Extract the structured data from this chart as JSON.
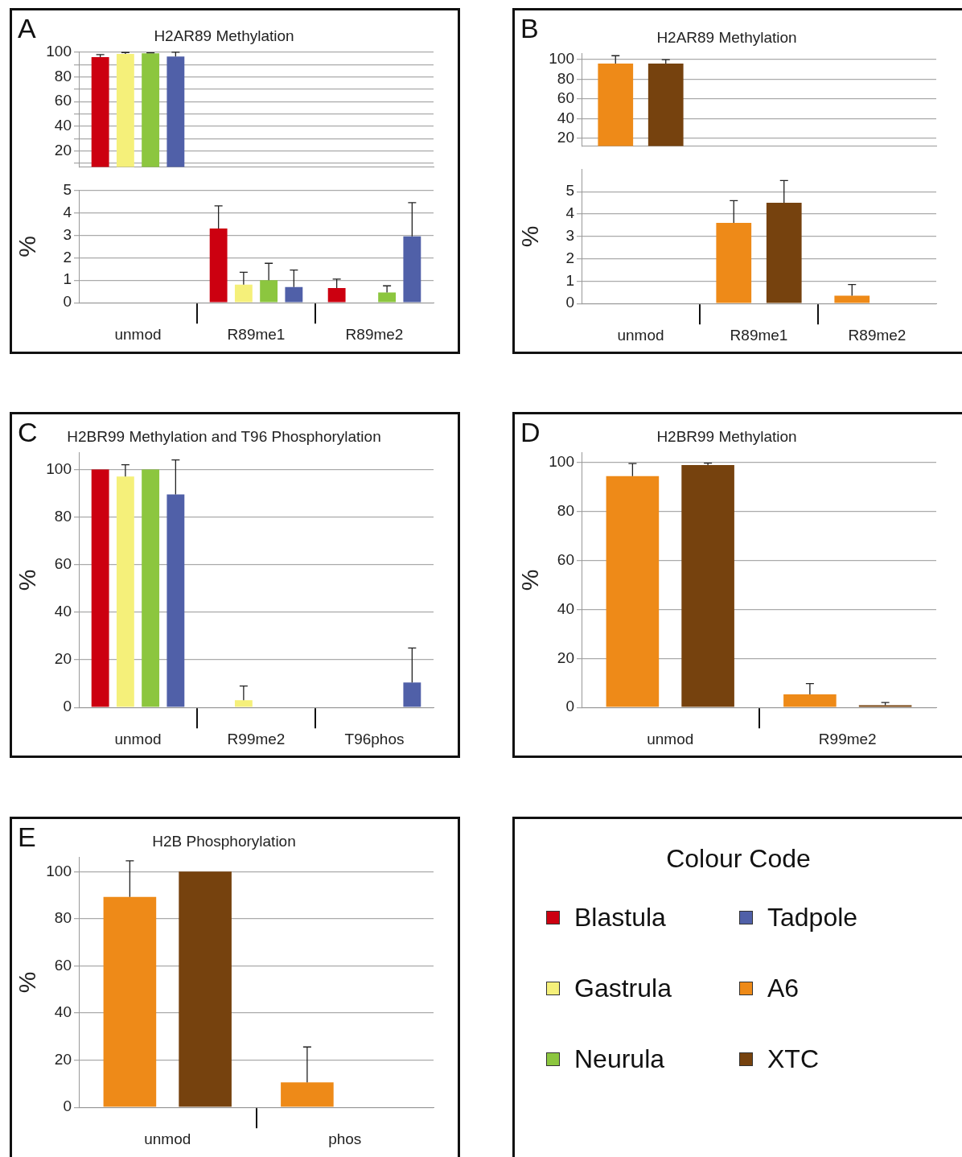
{
  "chart_data": [
    {
      "type": "bar",
      "title": "H2AR89 Methylation",
      "annotations": [
        "A"
      ],
      "categories": [
        null,
        null,
        null
      ],
      "tick_labels": "y",
      "grid": "y",
      "legend": false,
      "ylim": [
        7,
        100
      ],
      "yticks": [
        {
          "value": 10,
          "label": null
        },
        20,
        {
          "value": 30,
          "label": null
        },
        40,
        {
          "value": 50,
          "label": null
        },
        60,
        {
          "value": 70,
          "label": null
        },
        80,
        {
          "value": 90,
          "label": null
        },
        100
      ],
      "series": [
        {
          "color": "#cc0010",
          "values": [
            96,
            null,
            null
          ],
          "errors": [
            [
              96,
              98
            ],
            null,
            null
          ]
        },
        {
          "color": "#f5f07a",
          "values": [
            98.5,
            null,
            null
          ],
          "errors": [
            [
              98.5,
              99.7
            ],
            null,
            null
          ]
        },
        {
          "color": "#8cc63f",
          "values": [
            99,
            null,
            null
          ],
          "errors": [
            [
              99,
              99.5
            ],
            null,
            null
          ]
        },
        {
          "color": "#5060a8",
          "values": [
            96.5,
            null,
            null
          ],
          "errors": [
            [
              96.5,
              100
            ],
            null,
            null
          ]
        }
      ]
    },
    {
      "type": "bar",
      "ylabel": "%",
      "categories": [
        "unmod",
        "R89me1",
        "R89me2"
      ],
      "grid": "y",
      "legend": false,
      "ylim": [
        0,
        5
      ],
      "yticks": [
        0,
        1,
        2,
        3,
        4,
        5
      ],
      "series": [
        {
          "color": "#cc0010",
          "values": [
            null,
            3.3,
            0.65
          ],
          "errors": [
            null,
            [
              3.3,
              4.3
            ],
            [
              0.65,
              1.05
            ]
          ]
        },
        {
          "color": "#f5f07a",
          "values": [
            null,
            0.8,
            null
          ],
          "errors": [
            null,
            [
              0.8,
              1.35
            ],
            null
          ]
        },
        {
          "color": "#8cc63f",
          "values": [
            null,
            1.0,
            0.45
          ],
          "errors": [
            null,
            [
              1.0,
              1.75
            ],
            [
              0.45,
              0.75
            ]
          ]
        },
        {
          "color": "#5060a8",
          "values": [
            null,
            0.7,
            2.95
          ],
          "errors": [
            null,
            [
              0.7,
              1.45
            ],
            [
              2.95,
              4.45
            ]
          ]
        }
      ]
    },
    {
      "type": "bar",
      "title": "H2AR89 Methylation",
      "annotations": [
        "B"
      ],
      "categories": [
        null,
        null,
        null
      ],
      "tick_labels": "y",
      "grid": "y",
      "legend": false,
      "ylim": [
        12,
        106
      ],
      "yticks": [
        20,
        40,
        60,
        80,
        100
      ],
      "series": [
        {
          "color": "#ee8a18",
          "values": [
            96,
            null,
            null
          ],
          "errors": [
            [
              96,
              104
            ],
            null,
            null
          ]
        },
        {
          "color": "#76420e",
          "values": [
            96,
            null,
            null
          ],
          "errors": [
            [
              96,
              100
            ],
            null,
            null
          ]
        }
      ]
    },
    {
      "type": "bar",
      "ylabel": "%",
      "categories": [
        "unmod",
        "R89me1",
        "R89me2"
      ],
      "grid": "y",
      "legend": false,
      "ylim": [
        0,
        6
      ],
      "yticks": [
        0,
        1,
        2,
        3,
        4,
        5
      ],
      "series": [
        {
          "color": "#ee8a18",
          "values": [
            null,
            3.6,
            0.35
          ],
          "errors": [
            null,
            [
              3.6,
              4.6
            ],
            [
              0.35,
              0.85
            ]
          ]
        },
        {
          "color": "#76420e",
          "values": [
            null,
            4.5,
            null
          ],
          "errors": [
            null,
            [
              4.5,
              5.5
            ],
            null
          ]
        }
      ]
    },
    {
      "type": "bar",
      "title": "H2BR99 Methylation and T96 Phosphorylation",
      "annotations": [
        "C"
      ],
      "ylabel": "%",
      "categories": [
        "unmod",
        "R99me2",
        "T96phos"
      ],
      "grid": "y",
      "legend": false,
      "ylim": [
        0,
        107
      ],
      "yticks": [
        0,
        20,
        40,
        60,
        80,
        100
      ],
      "series": [
        {
          "color": "#cc0010",
          "values": [
            100,
            null,
            null
          ],
          "errors": [
            null,
            null,
            null
          ]
        },
        {
          "color": "#f5f07a",
          "values": [
            97,
            3,
            null
          ],
          "errors": [
            [
              97,
              102
            ],
            [
              3,
              9
            ],
            null
          ]
        },
        {
          "color": "#8cc63f",
          "values": [
            100,
            null,
            null
          ],
          "errors": [
            null,
            null,
            null
          ]
        },
        {
          "color": "#5060a8",
          "values": [
            89.5,
            null,
            10.5
          ],
          "errors": [
            [
              89.5,
              104
            ],
            null,
            [
              10.5,
              25
            ]
          ]
        }
      ]
    },
    {
      "type": "bar",
      "title": "H2BR99 Methylation",
      "annotations": [
        "D"
      ],
      "ylabel": "%",
      "categories": [
        "unmod",
        "R99me2"
      ],
      "grid": "y",
      "legend": false,
      "ylim": [
        0,
        104
      ],
      "yticks": [
        0,
        20,
        40,
        60,
        80,
        100
      ],
      "series": [
        {
          "color": "#ee8a18",
          "values": [
            94.5,
            5.3
          ],
          "errors": [
            [
              94.5,
              99.6
            ],
            [
              5.3,
              9.7
            ]
          ]
        },
        {
          "color": "#76420e",
          "values": [
            99,
            0.9
          ],
          "errors": [
            [
              99,
              99.8
            ],
            [
              0.9,
              2
            ]
          ]
        }
      ]
    },
    {
      "type": "bar",
      "title": "H2B Phosphorylation",
      "annotations": [
        "E"
      ],
      "ylabel": "%",
      "categories": [
        "unmod",
        "phos"
      ],
      "grid": "y",
      "legend": false,
      "ylim": [
        0,
        106
      ],
      "yticks": [
        0,
        20,
        40,
        60,
        80,
        100
      ],
      "series": [
        {
          "color": "#ee8a18",
          "values": [
            89.3,
            10.6
          ],
          "errors": [
            [
              89.3,
              104.6
            ],
            [
              10.6,
              25.6
            ]
          ]
        },
        {
          "color": "#76420e",
          "values": [
            100,
            null
          ],
          "errors": [
            null,
            null
          ]
        }
      ]
    },
    {
      "type": "other",
      "title": "Colour Code",
      "categories": [
        "Blastula",
        "Gastrula",
        "Neurula",
        "Tadpole",
        "A6",
        "XTC"
      ],
      "colors": [
        "#cc0010",
        "#f5f07a",
        "#8cc63f",
        "#5060a8",
        "#ee8a18",
        "#76420e"
      ]
    }
  ]
}
